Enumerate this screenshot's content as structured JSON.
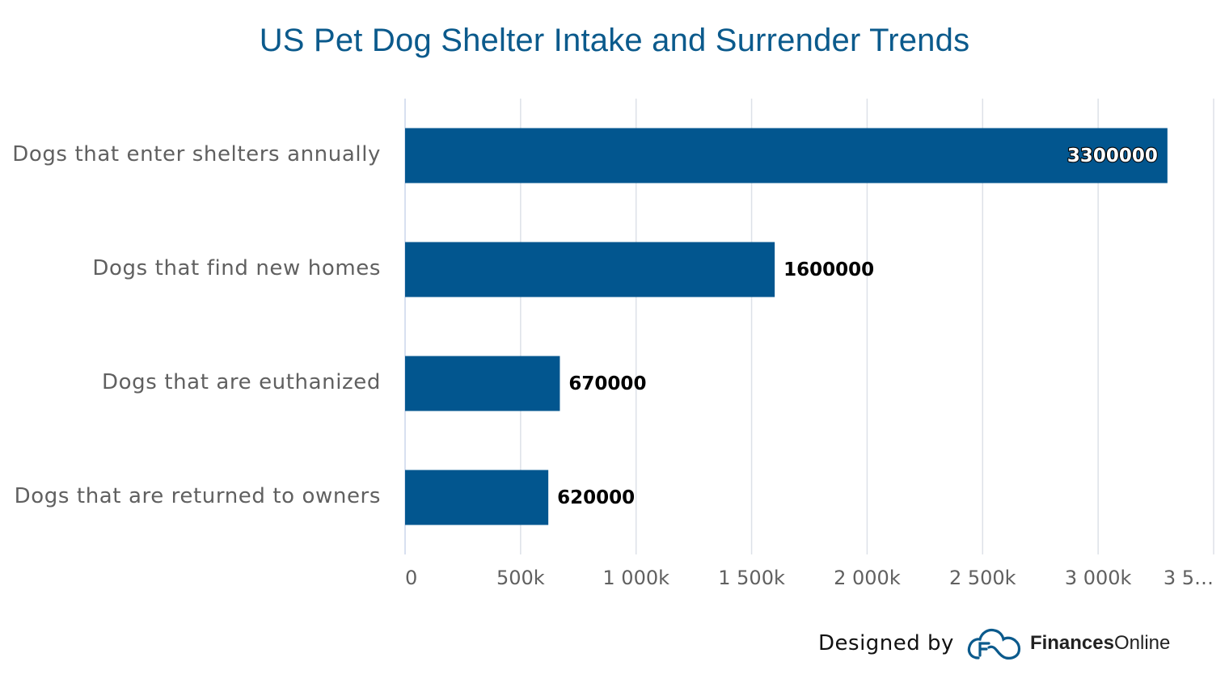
{
  "chart_data": {
    "type": "bar",
    "orientation": "horizontal",
    "title": "US Pet Dog Shelter Intake and Surrender Trends",
    "categories": [
      "Dogs that enter shelters annually",
      "Dogs that find new homes",
      "Dogs that are euthanized",
      "Dogs that are returned to owners"
    ],
    "values": [
      3300000,
      1600000,
      670000,
      620000
    ],
    "value_labels": [
      "3300000",
      "1600000",
      "670000",
      "620000"
    ],
    "xlim": [
      0,
      3500000
    ],
    "x_ticks": [
      0,
      500000,
      1000000,
      1500000,
      2000000,
      2500000,
      3000000,
      3500000
    ],
    "x_tick_labels": [
      "0",
      "500k",
      "1 000k",
      "1 500k",
      "2 000k",
      "2 500k",
      "3 000k",
      "3 5…"
    ],
    "xlabel": "",
    "ylabel": "",
    "grid": "vertical",
    "bar_color": "#02568f",
    "grid_color": "#dde1e8",
    "label_color": "#606060"
  },
  "footer": {
    "designed_by": "Designed by",
    "brand_bold": "Finances",
    "brand_light": "Online",
    "logo_icon": "cloud-f-logo-icon",
    "logo_color": "#0b5a8c"
  }
}
